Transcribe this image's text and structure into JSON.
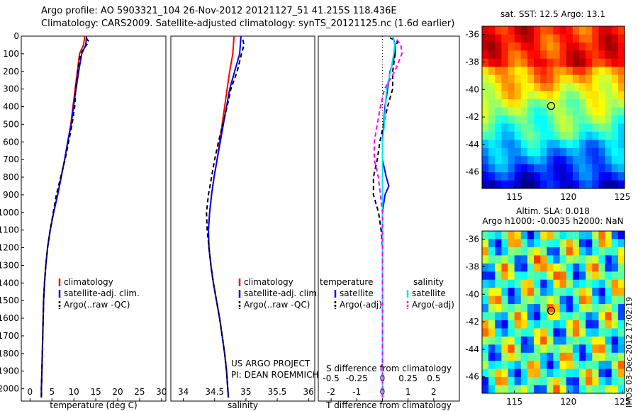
{
  "header": {
    "line1": "Argo profile: AO 5903321_104 26-Nov-2012 20121127_51 41.215S 118.436E",
    "line2": "Climatology: CARS2009. Satellite-adjusted climatology: synTS_20121125.nc (1.6d earlier)"
  },
  "sidebar_text": "IMOS 03-Dec-2012 17:02:19",
  "colors": {
    "climatology": "#ff0000",
    "satellite": "#0000ff",
    "argo": "#000000",
    "salinity_sat": "#00e5ee",
    "salinity_argo": "#ff00ff"
  },
  "chart_data": [
    {
      "type": "line",
      "xlabel": "temperature (deg C)",
      "ylabel": "",
      "xlim": [
        -2,
        31
      ],
      "ylim": [
        2070,
        0
      ],
      "x_ticks": [
        "0",
        "5",
        "10",
        "15",
        "20",
        "25",
        "30"
      ],
      "y_ticks": [
        "0",
        "100",
        "200",
        "300",
        "400",
        "500",
        "600",
        "700",
        "800",
        "900",
        "1000",
        "1100",
        "1200",
        "1300",
        "1400",
        "1500",
        "1600",
        "1700",
        "1800",
        "1900",
        "2000"
      ],
      "legend": [
        "climatology",
        "satellite-adj. clim.",
        "Argo(..raw -QC)"
      ],
      "series": [
        {
          "name": "climatology",
          "points": [
            [
              12.5,
              0
            ],
            [
              12.2,
              50
            ],
            [
              11.3,
              100
            ],
            [
              10.8,
              200
            ],
            [
              10.3,
              300
            ],
            [
              9.8,
              400
            ],
            [
              9.3,
              500
            ],
            [
              8.6,
              600
            ],
            [
              7.9,
              700
            ],
            [
              7.1,
              800
            ],
            [
              6.3,
              900
            ],
            [
              5.4,
              1000
            ],
            [
              4.6,
              1100
            ],
            [
              4.0,
              1200
            ],
            [
              3.6,
              1300
            ],
            [
              3.3,
              1400
            ],
            [
              3.1,
              1500
            ],
            [
              3.0,
              1600
            ],
            [
              2.9,
              1700
            ],
            [
              2.8,
              1800
            ],
            [
              2.7,
              1900
            ],
            [
              2.6,
              2000
            ],
            [
              2.6,
              2050
            ]
          ]
        },
        {
          "name": "satellite-adj. clim.",
          "points": [
            [
              12.9,
              0
            ],
            [
              12.7,
              50
            ],
            [
              11.8,
              100
            ],
            [
              11.1,
              200
            ],
            [
              10.5,
              300
            ],
            [
              9.9,
              400
            ],
            [
              9.4,
              500
            ],
            [
              8.6,
              600
            ],
            [
              7.9,
              700
            ],
            [
              7.1,
              800
            ],
            [
              6.3,
              900
            ],
            [
              5.4,
              1000
            ],
            [
              4.6,
              1100
            ],
            [
              4.0,
              1200
            ],
            [
              3.6,
              1300
            ],
            [
              3.3,
              1400
            ],
            [
              3.1,
              1500
            ],
            [
              3.0,
              1600
            ],
            [
              2.9,
              1700
            ],
            [
              2.8,
              1800
            ],
            [
              2.7,
              1900
            ],
            [
              2.6,
              2000
            ],
            [
              2.6,
              2050
            ]
          ]
        },
        {
          "name": "Argo(..raw -QC)",
          "points": [
            [
              12.8,
              10
            ],
            [
              13.4,
              30
            ],
            [
              12.6,
              60
            ],
            [
              11.5,
              100
            ],
            [
              10.9,
              200
            ],
            [
              10.4,
              300
            ],
            [
              10.2,
              400
            ],
            [
              9.6,
              500
            ],
            [
              8.8,
              600
            ],
            [
              8.0,
              700
            ],
            [
              7.0,
              800
            ],
            [
              6.0,
              900
            ],
            [
              5.3,
              1000
            ],
            [
              4.6,
              1100
            ],
            [
              4.0,
              1200
            ],
            [
              3.6,
              1300
            ],
            [
              3.3,
              1400
            ],
            [
              3.1,
              1500
            ],
            [
              3.0,
              1600
            ],
            [
              2.9,
              1700
            ],
            [
              2.8,
              1800
            ],
            [
              2.7,
              1900
            ],
            [
              2.6,
              2000
            ],
            [
              2.6,
              2050
            ]
          ]
        }
      ]
    },
    {
      "type": "line",
      "xlabel": "salinity",
      "ylabel": "",
      "xlim": [
        33.8,
        36.1
      ],
      "ylim": [
        2070,
        0
      ],
      "x_ticks": [
        "34",
        "34.5",
        "35",
        "35.5",
        "36"
      ],
      "legend": [
        "climatology",
        "satellite-adj. clim.",
        "Argo(..raw -QC)"
      ],
      "annotation": [
        "US ARGO PROJECT",
        "PI: DEAN ROEMMICH"
      ],
      "series": [
        {
          "name": "climatology",
          "points": [
            [
              34.81,
              0
            ],
            [
              34.79,
              100
            ],
            [
              34.74,
              200
            ],
            [
              34.7,
              300
            ],
            [
              34.66,
              400
            ],
            [
              34.62,
              500
            ],
            [
              34.58,
              600
            ],
            [
              34.54,
              700
            ],
            [
              34.49,
              800
            ],
            [
              34.45,
              900
            ],
            [
              34.42,
              1000
            ],
            [
              34.4,
              1100
            ],
            [
              34.41,
              1200
            ],
            [
              34.44,
              1300
            ],
            [
              34.48,
              1400
            ],
            [
              34.53,
              1500
            ],
            [
              34.58,
              1600
            ],
            [
              34.62,
              1700
            ],
            [
              34.66,
              1800
            ],
            [
              34.69,
              1900
            ],
            [
              34.71,
              2000
            ],
            [
              34.72,
              2050
            ]
          ]
        },
        {
          "name": "satellite-adj. clim.",
          "points": [
            [
              34.92,
              0
            ],
            [
              34.9,
              100
            ],
            [
              34.82,
              200
            ],
            [
              34.74,
              300
            ],
            [
              34.69,
              400
            ],
            [
              34.64,
              500
            ],
            [
              34.59,
              600
            ],
            [
              34.54,
              700
            ],
            [
              34.49,
              800
            ],
            [
              34.45,
              900
            ],
            [
              34.42,
              1000
            ],
            [
              34.4,
              1100
            ],
            [
              34.41,
              1200
            ],
            [
              34.44,
              1300
            ],
            [
              34.48,
              1400
            ],
            [
              34.53,
              1500
            ],
            [
              34.58,
              1600
            ],
            [
              34.62,
              1700
            ],
            [
              34.66,
              1800
            ],
            [
              34.69,
              1900
            ],
            [
              34.71,
              2000
            ],
            [
              34.72,
              2050
            ]
          ]
        },
        {
          "name": "Argo(..raw -QC)",
          "points": [
            [
              34.95,
              20
            ],
            [
              34.97,
              50
            ],
            [
              34.93,
              100
            ],
            [
              34.86,
              200
            ],
            [
              34.76,
              300
            ],
            [
              34.7,
              400
            ],
            [
              34.63,
              500
            ],
            [
              34.56,
              600
            ],
            [
              34.5,
              700
            ],
            [
              34.45,
              800
            ],
            [
              34.4,
              900
            ],
            [
              34.37,
              1000
            ],
            [
              34.38,
              1100
            ],
            [
              34.41,
              1200
            ],
            [
              34.44,
              1300
            ],
            [
              34.48,
              1400
            ],
            [
              34.53,
              1500
            ],
            [
              34.58,
              1600
            ],
            [
              34.62,
              1700
            ],
            [
              34.66,
              1800
            ],
            [
              34.69,
              1900
            ],
            [
              34.71,
              2000
            ],
            [
              34.72,
              2050
            ]
          ]
        }
      ]
    },
    {
      "type": "line",
      "xlabel": "T difference from climatology",
      "ylabel": "",
      "top_axis_label": "S difference from climatology",
      "xlim": [
        -2.5,
        3
      ],
      "s_xlim": [
        -0.625,
        0.75
      ],
      "ylim": [
        2070,
        0
      ],
      "x_ticks": [
        "-2",
        "-1",
        "0",
        "1",
        "2"
      ],
      "s_ticks": [
        "-0.5",
        "-0.25",
        "0",
        "0.25",
        "0.5"
      ],
      "legend_temperature": [
        "temperature",
        "satellite",
        "Argo(-adj)"
      ],
      "legend_salinity": [
        "salinity",
        "satellite",
        "Argo(-adj)"
      ],
      "series": [
        {
          "name": "T satellite",
          "points": [
            [
              0.4,
              0
            ],
            [
              0.5,
              50
            ],
            [
              0.5,
              100
            ],
            [
              0.3,
              200
            ],
            [
              0.2,
              300
            ],
            [
              0.1,
              400
            ],
            [
              0.05,
              500
            ],
            [
              0.0,
              600
            ],
            [
              0.0,
              700
            ],
            [
              0.15,
              800
            ],
            [
              0.25,
              850
            ],
            [
              0.1,
              900
            ],
            [
              0.0,
              1000
            ],
            [
              0.0,
              1200
            ],
            [
              0.0,
              2050
            ]
          ]
        },
        {
          "name": "T Argo(-adj)",
          "points": [
            [
              0.3,
              10
            ],
            [
              0.6,
              30
            ],
            [
              0.5,
              60
            ],
            [
              0.5,
              100
            ],
            [
              0.4,
              200
            ],
            [
              0.4,
              300
            ],
            [
              0.2,
              400
            ],
            [
              -0.1,
              600
            ],
            [
              -0.2,
              700
            ],
            [
              -0.35,
              800
            ],
            [
              -0.35,
              900
            ],
            [
              -0.15,
              1000
            ],
            [
              -0.05,
              1100
            ],
            [
              0.0,
              1200
            ],
            [
              0.0,
              2050
            ]
          ]
        },
        {
          "name": "S satellite",
          "points": [
            [
              0.1,
              0
            ],
            [
              0.12,
              50
            ],
            [
              0.11,
              100
            ],
            [
              0.08,
              200
            ],
            [
              0.04,
              300
            ],
            [
              0.03,
              400
            ],
            [
              0.02,
              500
            ],
            [
              0.0,
              600
            ],
            [
              0.0,
              2050
            ]
          ]
        },
        {
          "name": "S Argo(-adj)",
          "points": [
            [
              0.14,
              20
            ],
            [
              0.18,
              50
            ],
            [
              0.19,
              100
            ],
            [
              0.12,
              200
            ],
            [
              0.02,
              300
            ],
            [
              -0.02,
              400
            ],
            [
              -0.05,
              500
            ],
            [
              -0.08,
              600
            ],
            [
              -0.08,
              700
            ],
            [
              -0.04,
              800
            ],
            [
              -0.02,
              900
            ],
            [
              0.0,
              1000
            ],
            [
              0.0,
              2050
            ]
          ]
        }
      ]
    },
    {
      "type": "heatmap",
      "title": "sat. SST: 12.5 Argo: 13.1",
      "x_ticks": [
        "115",
        "120",
        "125"
      ],
      "y_ticks": [
        "-36",
        "-38",
        "-40",
        "-42",
        "-44",
        "-46"
      ],
      "xlim": [
        112,
        125.2
      ],
      "ylim": [
        -47.2,
        -35.4
      ],
      "marker": [
        118.4,
        -41.2
      ]
    },
    {
      "type": "heatmap",
      "title": "Altim. SLA: 0.018",
      "subtitle": "Argo h1000: -0.0035 h2000: NaN",
      "x_ticks": [
        "115",
        "120",
        "125"
      ],
      "y_ticks": [
        "-36",
        "-38",
        "-40",
        "-42",
        "-44",
        "-46"
      ],
      "xlim": [
        112,
        125.2
      ],
      "ylim": [
        -47.2,
        -35.4
      ],
      "marker": [
        118.4,
        -41.2
      ]
    }
  ]
}
